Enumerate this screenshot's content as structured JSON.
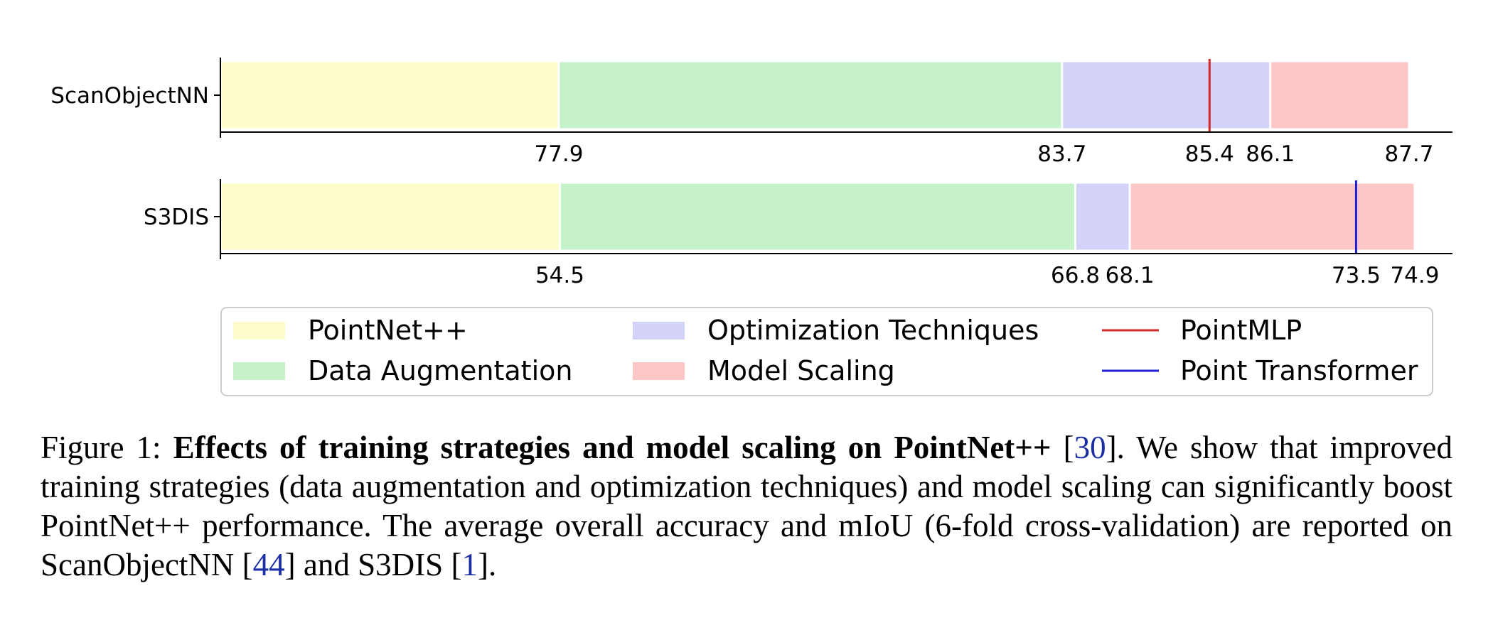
{
  "chart_data": {
    "type": "bar",
    "orientation": "horizontal-stacked",
    "rows": [
      {
        "label": "ScanObjectNN",
        "segments": [
          {
            "series": "PointNet++",
            "from": 74.0,
            "to": 77.9
          },
          {
            "series": "Data Augmentation",
            "from": 77.9,
            "to": 83.7
          },
          {
            "series": "Optimization Techniques",
            "from": 83.7,
            "to": 86.1
          },
          {
            "series": "Model Scaling",
            "from": 86.1,
            "to": 87.7
          }
        ],
        "ticks": [
          "77.9",
          "83.7",
          "85.4",
          "86.1",
          "87.7"
        ],
        "tick_values": [
          77.9,
          83.7,
          85.4,
          86.1,
          87.7
        ],
        "marker": {
          "series": "PointMLP",
          "value": 85.4
        },
        "xlim": [
          74.0,
          88.2
        ]
      },
      {
        "label": "S3DIS",
        "segments": [
          {
            "series": "PointNet++",
            "from": 46.4,
            "to": 54.5
          },
          {
            "series": "Data Augmentation",
            "from": 54.5,
            "to": 66.8
          },
          {
            "series": "Optimization Techniques",
            "from": 66.8,
            "to": 68.1
          },
          {
            "series": "Model Scaling",
            "from": 68.1,
            "to": 74.9
          }
        ],
        "ticks": [
          "54.5",
          "66.8",
          "68.1",
          "73.5",
          "74.9"
        ],
        "tick_values": [
          54.5,
          66.8,
          68.1,
          73.5,
          74.9
        ],
        "marker": {
          "series": "Point Transformer",
          "value": 73.5
        },
        "xlim": [
          46.4,
          75.8
        ]
      }
    ],
    "legend": {
      "placement": "bottom",
      "items": [
        {
          "name": "PointNet++",
          "kind": "patch",
          "color": "#fdfdcc"
        },
        {
          "name": "Optimization Techniques",
          "kind": "patch",
          "color": "#d3d3f9"
        },
        {
          "name": "PointMLP",
          "kind": "line",
          "color": "#d62728"
        },
        {
          "name": "Data Augmentation",
          "kind": "patch",
          "color": "#c6f2ca"
        },
        {
          "name": "Model Scaling",
          "kind": "patch",
          "color": "#fdc7c7"
        },
        {
          "name": "Point Transformer",
          "kind": "line",
          "color": "#1f1fd4"
        }
      ]
    },
    "grid": false
  },
  "caption": {
    "prefix": "Figure 1: ",
    "bold": "Effects of training strategies and model scaling on PointNet++",
    "ref1": "30",
    "text1": "We show that improved training strategies (data augmentation and optimization techniques) and model scaling can significantly boost PointNet++ performance. The average overall accuracy and mIoU (6-fold cross-validation) are reported on ScanObjectNN ",
    "ref2": "44",
    "text2": " and S3DIS ",
    "ref3": "1",
    "text3": "."
  }
}
